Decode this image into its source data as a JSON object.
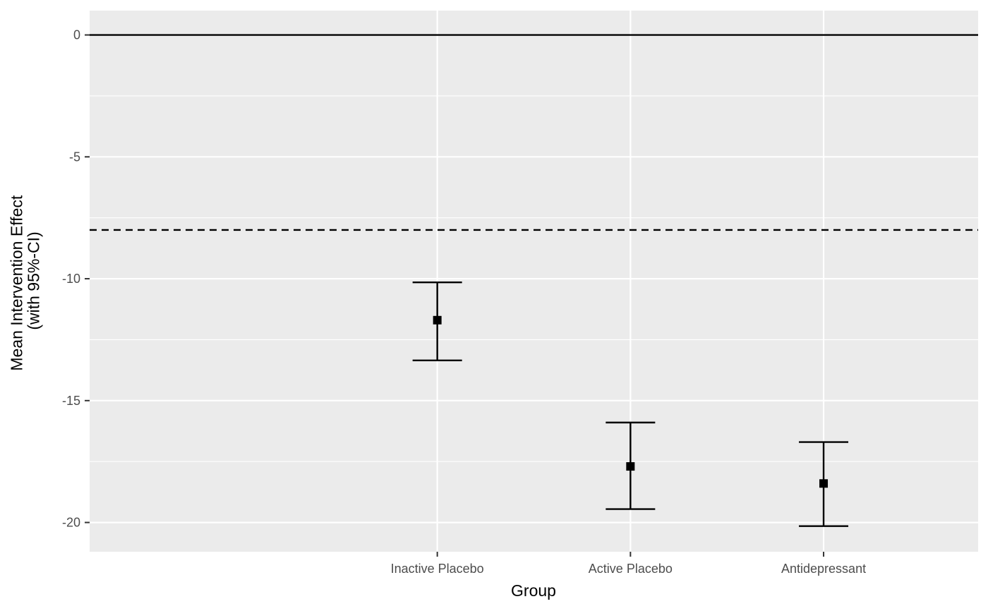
{
  "chart_data": {
    "type": "scatter",
    "subtype": "errorbar",
    "title": "",
    "xlabel": "Group",
    "ylabel_lines": [
      "Mean Intervention Effect",
      "(with 95%-CI)"
    ],
    "categories": [
      "",
      "Inactive Placebo",
      "Active Placebo",
      "Antidepressant"
    ],
    "points": [
      {
        "category": "Inactive Placebo",
        "mean": -11.7,
        "lower": -13.35,
        "upper": -10.15
      },
      {
        "category": "Active Placebo",
        "mean": -17.7,
        "lower": -19.45,
        "upper": -15.9
      },
      {
        "category": "Antidepressant",
        "mean": -18.4,
        "lower": -20.15,
        "upper": -16.7
      }
    ],
    "yticks": [
      0,
      -5,
      -10,
      -15,
      -20
    ],
    "ytick_labels": [
      "0",
      "-5",
      "-10",
      "-15",
      "-20"
    ],
    "ylim": [
      -21.2,
      1.0
    ],
    "hlines": [
      {
        "y": 0,
        "style": "solid"
      },
      {
        "y": -8,
        "style": "dashed"
      }
    ],
    "grid": true,
    "legend": "none",
    "colors": {
      "panel": "#ebebeb",
      "grid": "#ffffff",
      "marks": "#000000",
      "tick_text": "#4d4d4d"
    }
  }
}
